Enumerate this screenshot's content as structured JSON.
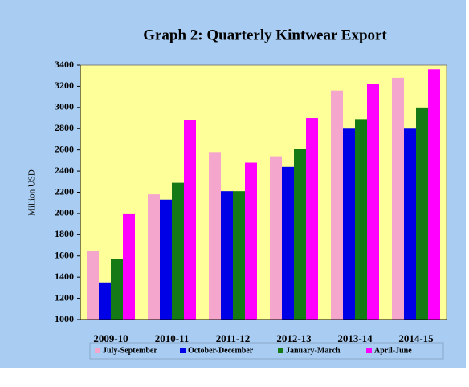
{
  "chart_data": {
    "type": "bar",
    "title": "Graph 2: Quarterly Kintwear Export",
    "y_label": "Million USD",
    "categories": [
      "2009-10",
      "2010-11",
      "2011-12",
      "2012-13",
      "2013-14",
      "2014-15"
    ],
    "series": [
      {
        "name": "July-September",
        "color": "#f4a6cc",
        "values": [
          1650,
          2180,
          2580,
          2540,
          3160,
          3280
        ]
      },
      {
        "name": "October-December",
        "color": "#0000e6",
        "values": [
          1350,
          2130,
          2210,
          2440,
          2800,
          2800
        ]
      },
      {
        "name": "January-March",
        "color": "#157a15",
        "values": [
          1570,
          2290,
          2210,
          2610,
          2890,
          3000
        ]
      },
      {
        "name": "April-June",
        "color": "#ff00ff",
        "values": [
          2000,
          2880,
          2480,
          2900,
          3220,
          3360
        ]
      }
    ],
    "ylim": [
      1000,
      3400
    ],
    "yticks": [
      1000,
      1200,
      1400,
      1600,
      1800,
      2000,
      2200,
      2400,
      2600,
      2800,
      3000,
      3200,
      3400
    ],
    "grid": false,
    "legend": "bottom"
  }
}
